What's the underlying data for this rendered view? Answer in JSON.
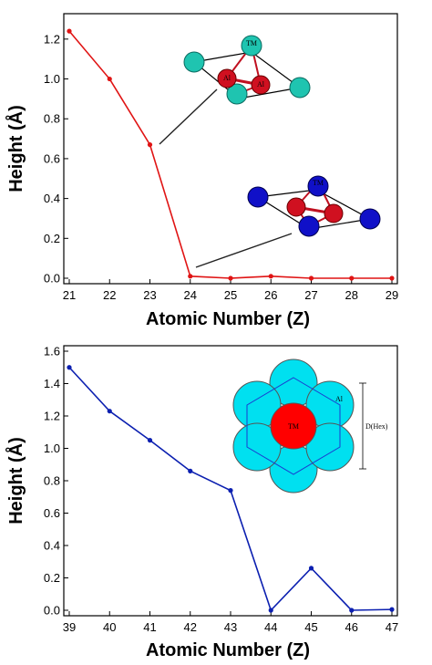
{
  "chart_data": [
    {
      "type": "line",
      "x": [
        21,
        22,
        23,
        24,
        25,
        26,
        27,
        28,
        29
      ],
      "series": [
        {
          "values": [
            1.24,
            1.0,
            0.67,
            0.01,
            0.0,
            0.01,
            0.0,
            0.0,
            0.0
          ],
          "color": "#e01414"
        }
      ],
      "xlabel": "Atomic Number (Z)",
      "ylabel": "Height (Å)",
      "xlim": [
        21,
        29
      ],
      "ylim": [
        0.0,
        1.3
      ],
      "yticks": [
        "0.0",
        "0.2",
        "0.4",
        "0.6",
        "0.8",
        "1.0",
        "1.2"
      ],
      "xticks": [
        "21",
        "22",
        "23",
        "24",
        "25",
        "26",
        "27",
        "28",
        "29"
      ],
      "grid": false,
      "insets": [
        {
          "labels": [
            "TM",
            "Al",
            "Al"
          ],
          "atom_color": "#1fc4b0",
          "core_color": "#d01020",
          "points_to_x": 23
        },
        {
          "labels": [
            "TM"
          ],
          "atom_color": "#1010c8",
          "core_color": "#d01020",
          "points_to_x": 24
        }
      ]
    },
    {
      "type": "line",
      "x": [
        39,
        40,
        41,
        42,
        43,
        44,
        45,
        46,
        47
      ],
      "series": [
        {
          "values": [
            1.5,
            1.23,
            1.05,
            0.86,
            0.74,
            0.0,
            0.26,
            0.0,
            0.005
          ],
          "color": "#0b1fb0"
        }
      ],
      "xlabel": "Atomic Number (Z)",
      "ylabel": "Height (Å)",
      "xlim": [
        39,
        47
      ],
      "ylim": [
        0.0,
        1.6
      ],
      "yticks": [
        "0.0",
        "0.2",
        "0.4",
        "0.6",
        "0.8",
        "1.0",
        "1.2",
        "1.4",
        "1.6"
      ],
      "xticks": [
        "39",
        "40",
        "41",
        "42",
        "43",
        "44",
        "45",
        "46",
        "47"
      ],
      "grid": false,
      "inset": {
        "labels": [
          "TM",
          "Al",
          "D(Hex)"
        ],
        "atom_color": "#00e0f0",
        "center_color": "#ff0000"
      }
    }
  ]
}
